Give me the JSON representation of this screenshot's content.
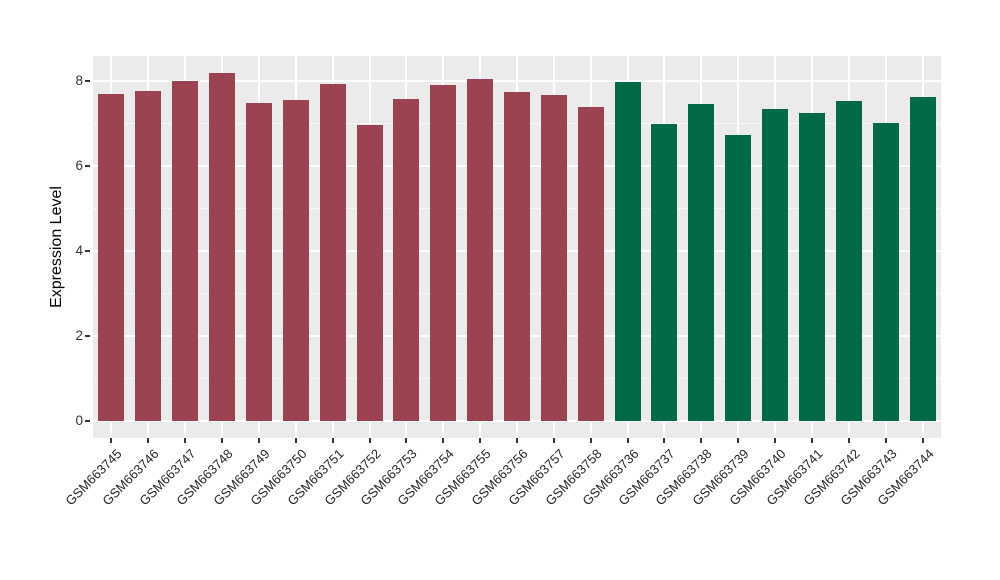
{
  "figure": {
    "background_color": "#FFFFFF",
    "panel_background_color": "#EBEBEB",
    "gridline_color": "#FFFFFF",
    "tick_color": "#333333",
    "axis_text_color": "#333333",
    "x_axis_text_color": "#262626",
    "axis_title_color": "#000000"
  },
  "chart_data": {
    "type": "bar",
    "title": "",
    "xlabel": "",
    "ylabel": "Expression Level",
    "ylim": [
      0,
      8.2
    ],
    "yticks": [
      0,
      2,
      4,
      6,
      8
    ],
    "ytick_labels": [
      "0",
      "2",
      "4",
      "6",
      "8"
    ],
    "minor_yticks": [
      1,
      3,
      5,
      7
    ],
    "grid": "major-and-minor-white-on-gray",
    "legend_position": "none",
    "x_label_rotation_deg": 45,
    "categories": [
      "GSM663745",
      "GSM663746",
      "GSM663747",
      "GSM663748",
      "GSM663749",
      "GSM663750",
      "GSM663751",
      "GSM663752",
      "GSM663753",
      "GSM663754",
      "GSM663755",
      "GSM663756",
      "GSM663757",
      "GSM663758",
      "GSM663736",
      "GSM663737",
      "GSM663738",
      "GSM663739",
      "GSM663740",
      "GSM663741",
      "GSM663742",
      "GSM663743",
      "GSM663744"
    ],
    "values": [
      7.7,
      7.77,
      8.0,
      8.19,
      7.5,
      7.57,
      7.95,
      6.97,
      7.58,
      7.91,
      8.06,
      7.76,
      7.68,
      7.4,
      7.98,
      7.0,
      7.47,
      6.73,
      7.35,
      7.26,
      7.54,
      7.02,
      7.63
    ],
    "groups": [
      "A",
      "A",
      "A",
      "A",
      "A",
      "A",
      "A",
      "A",
      "A",
      "A",
      "A",
      "A",
      "A",
      "A",
      "B",
      "B",
      "B",
      "B",
      "B",
      "B",
      "B",
      "B",
      "B"
    ],
    "group_colors": {
      "A": "#9C4351",
      "B": "#026A48"
    }
  }
}
